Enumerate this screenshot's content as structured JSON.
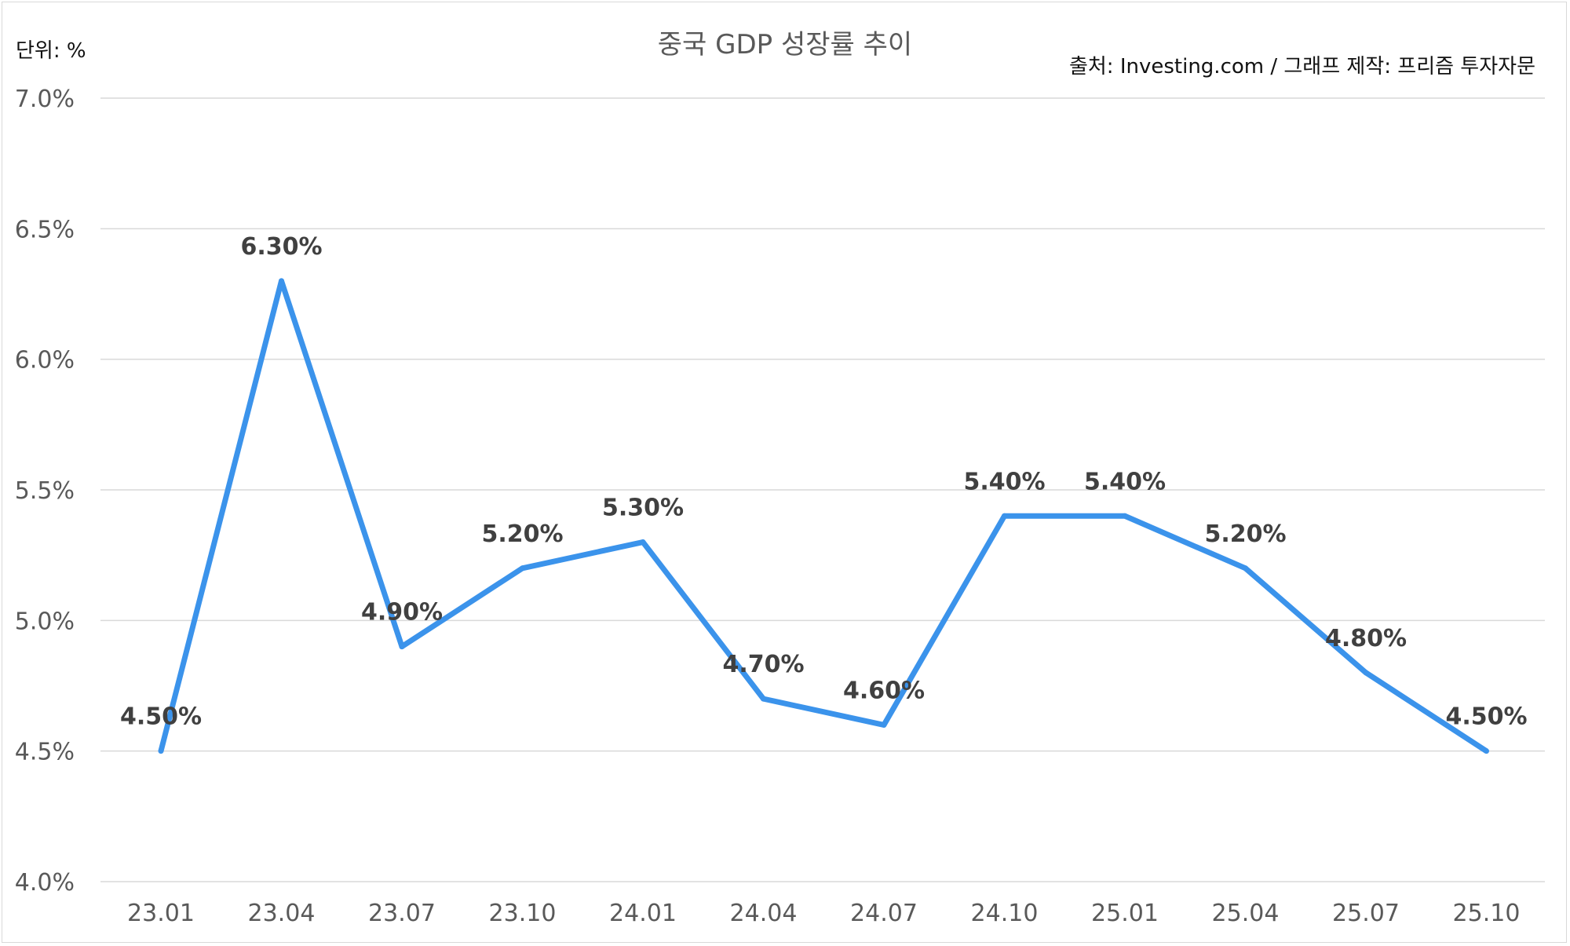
{
  "chart_data": {
    "type": "line",
    "title": "중국 GDP 성장률 추이",
    "unit_note": "단위: %",
    "source_note": "출처: Investing.com / 그래프 제작: 프리즘 투자자문",
    "categories": [
      "23.01",
      "23.04",
      "23.07",
      "23.10",
      "24.01",
      "24.04",
      "24.07",
      "24.10",
      "25.01",
      "25.04",
      "25.07",
      "25.10"
    ],
    "series": [
      {
        "values": [
          4.5,
          6.3,
          4.9,
          5.2,
          5.3,
          4.7,
          4.6,
          5.4,
          5.4,
          5.2,
          4.8,
          4.5
        ],
        "labels": [
          "4.50%",
          "6.30%",
          "4.90%",
          "5.20%",
          "5.30%",
          "4.70%",
          "4.60%",
          "5.40%",
          "5.40%",
          "5.20%",
          "4.80%",
          "4.50%"
        ],
        "color": "#3b93eb"
      }
    ],
    "ylim": [
      4.0,
      7.0
    ],
    "yticks": [
      4.0,
      4.5,
      5.0,
      5.5,
      6.0,
      6.5,
      7.0
    ],
    "ytick_labels": [
      "4.0%",
      "4.5%",
      "5.0%",
      "5.5%",
      "6.0%",
      "6.5%",
      "7.0%"
    ],
    "grid": true,
    "legend": "none"
  }
}
